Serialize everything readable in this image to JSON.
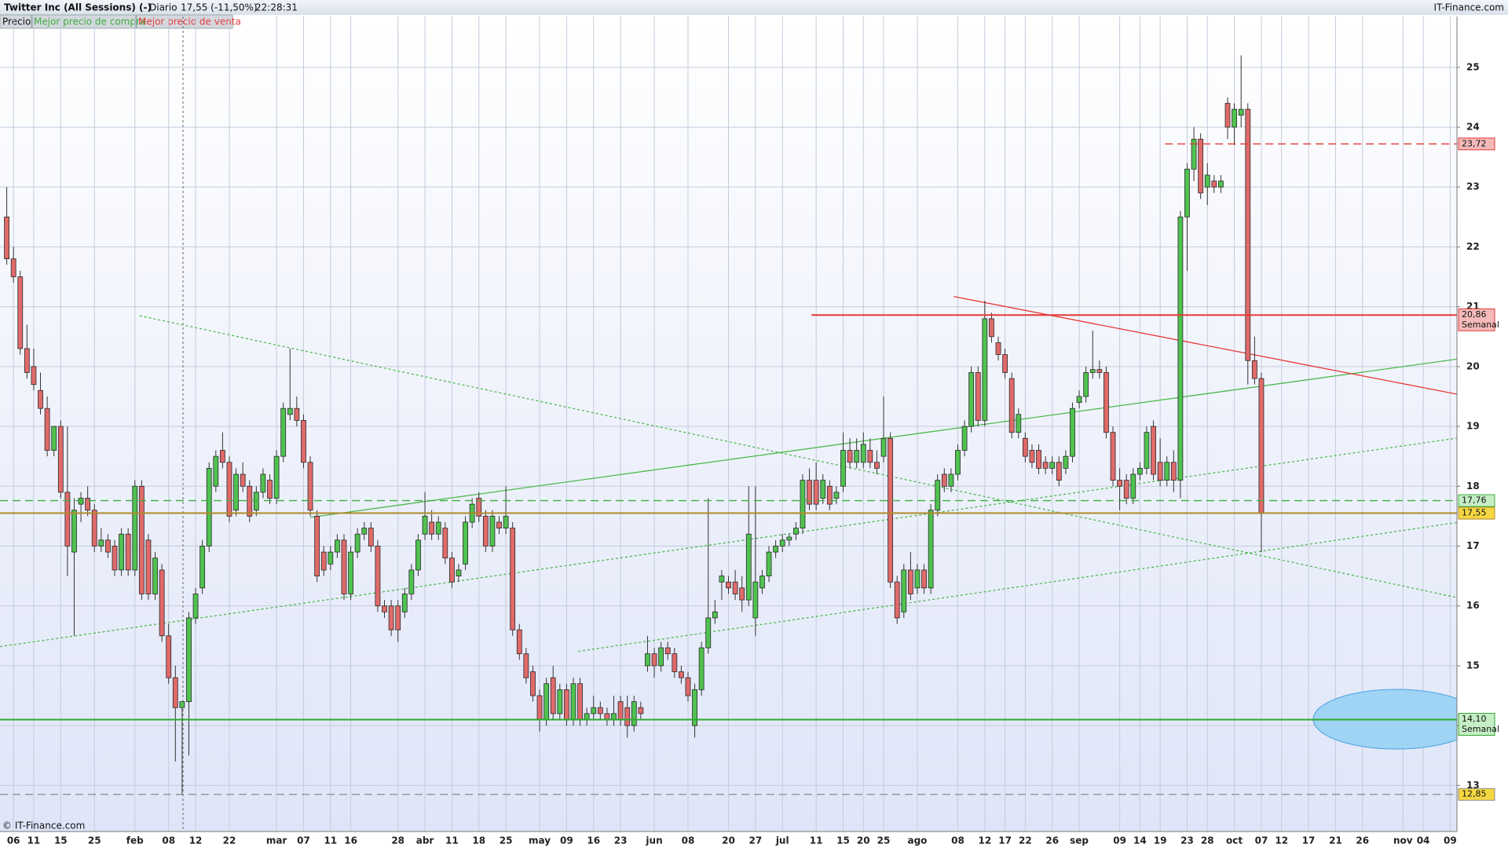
{
  "header": {
    "title": "Twitter Inc (All Sessions) (-)",
    "period": "Diario",
    "price": "17,55 (-11,50%)",
    "time": "22:28:31",
    "brand": "IT-Finance.com",
    "legend": [
      "Precio",
      "Mejor precio de compra",
      "Mejor precio de venta"
    ]
  },
  "footer": "© IT-Finance.com",
  "chart_data": {
    "type": "candlestick",
    "up_color": "#4fc24f",
    "down_color": "#e06a6a",
    "ylim": [
      12.23,
      25.85
    ],
    "yticks": [
      13,
      14,
      15,
      16,
      17,
      18,
      19,
      20,
      21,
      22,
      23,
      24,
      25
    ],
    "grid": true,
    "categories": [
      null,
      "06",
      null,
      null,
      "11",
      null,
      null,
      null,
      "15",
      null,
      null,
      null,
      null,
      "25",
      null,
      null,
      null,
      null,
      null,
      "feb",
      null,
      null,
      null,
      null,
      "08",
      null,
      null,
      null,
      "12",
      null,
      null,
      null,
      null,
      "22",
      null,
      null,
      null,
      null,
      null,
      null,
      "mar",
      null,
      null,
      null,
      "07",
      null,
      null,
      null,
      "11",
      null,
      null,
      "16",
      null,
      null,
      null,
      null,
      null,
      null,
      "28",
      null,
      null,
      null,
      "abr",
      null,
      null,
      null,
      "11",
      null,
      null,
      null,
      "18",
      null,
      null,
      null,
      "25",
      null,
      null,
      null,
      null,
      "may",
      null,
      null,
      null,
      "09",
      null,
      null,
      null,
      "16",
      null,
      null,
      null,
      "23",
      null,
      null,
      null,
      null,
      "jun",
      null,
      null,
      null,
      null,
      "08",
      null,
      null,
      null,
      null,
      null,
      "20",
      null,
      null,
      null,
      "27",
      null,
      null,
      null,
      "jul",
      null,
      null,
      null,
      null,
      "11",
      null,
      null,
      null,
      "15",
      null,
      null,
      "20",
      null,
      null,
      "25",
      null,
      null,
      null,
      null,
      "ago",
      null,
      null,
      null,
      null,
      null,
      "08",
      null,
      null,
      null,
      "12",
      null,
      null,
      "17",
      null,
      null,
      "22",
      null,
      null,
      null,
      "26",
      null,
      null,
      null,
      "sep",
      null,
      null,
      null,
      null,
      null,
      "09",
      null,
      null,
      "14",
      null,
      null,
      "19",
      null,
      null,
      null,
      "23",
      null,
      null,
      "28",
      null,
      null,
      null,
      "oct",
      null,
      null,
      null,
      "07",
      null,
      null,
      "12",
      null,
      null,
      null,
      "17",
      null,
      null,
      null,
      "21",
      null,
      null,
      null,
      "26",
      null,
      null,
      null,
      null,
      null,
      "nov",
      null,
      null,
      "04",
      null,
      null,
      null,
      "09",
      null
    ],
    "candles": [
      [
        22.5,
        23.0,
        21.7,
        21.8
      ],
      [
        21.8,
        22.0,
        21.4,
        21.5
      ],
      [
        21.5,
        21.6,
        20.2,
        20.3
      ],
      [
        20.3,
        20.7,
        19.8,
        19.9
      ],
      [
        20.0,
        20.3,
        19.6,
        19.7
      ],
      [
        19.6,
        19.9,
        19.2,
        19.3
      ],
      [
        19.3,
        19.5,
        18.5,
        18.6
      ],
      [
        18.6,
        19.0,
        18.5,
        19.0
      ],
      [
        19.0,
        19.1,
        17.8,
        17.9
      ],
      [
        17.9,
        19.0,
        16.5,
        17.0
      ],
      [
        16.9,
        17.8,
        15.5,
        17.6
      ],
      [
        17.7,
        17.9,
        17.4,
        17.8
      ],
      [
        17.8,
        18.0,
        17.5,
        17.6
      ],
      [
        17.6,
        17.7,
        16.9,
        17.0
      ],
      [
        17.0,
        17.3,
        16.9,
        17.1
      ],
      [
        17.1,
        17.2,
        16.8,
        16.9
      ],
      [
        17.0,
        17.1,
        16.5,
        16.6
      ],
      [
        16.6,
        17.3,
        16.5,
        17.2
      ],
      [
        17.2,
        17.3,
        16.5,
        16.6
      ],
      [
        16.6,
        18.1,
        16.5,
        18.0
      ],
      [
        18.0,
        18.1,
        16.1,
        16.2
      ],
      [
        17.1,
        17.2,
        16.1,
        16.2
      ],
      [
        16.2,
        16.9,
        16.1,
        16.8
      ],
      [
        16.6,
        16.7,
        15.4,
        15.5
      ],
      [
        15.5,
        15.7,
        14.7,
        14.8
      ],
      [
        14.8,
        15.0,
        13.4,
        14.3
      ],
      [
        14.3,
        14.4,
        12.85,
        14.4
      ],
      [
        14.4,
        15.9,
        13.5,
        15.8
      ],
      [
        15.8,
        16.3,
        15.7,
        16.2
      ],
      [
        16.3,
        17.1,
        16.2,
        17.0
      ],
      [
        17.0,
        18.4,
        16.9,
        18.3
      ],
      [
        18.0,
        18.6,
        17.9,
        18.5
      ],
      [
        18.6,
        18.9,
        18.3,
        18.4
      ],
      [
        18.4,
        18.5,
        17.4,
        17.5
      ],
      [
        17.6,
        18.3,
        17.5,
        18.2
      ],
      [
        18.2,
        18.4,
        17.9,
        18.0
      ],
      [
        18.0,
        18.1,
        17.4,
        17.5
      ],
      [
        17.6,
        18.0,
        17.5,
        17.9
      ],
      [
        17.9,
        18.3,
        17.8,
        18.2
      ],
      [
        18.1,
        18.2,
        17.7,
        17.8
      ],
      [
        17.8,
        18.6,
        17.7,
        18.5
      ],
      [
        18.5,
        19.4,
        18.4,
        19.3
      ],
      [
        19.2,
        20.3,
        19.1,
        19.3
      ],
      [
        19.3,
        19.5,
        19.0,
        19.1
      ],
      [
        19.1,
        19.2,
        18.3,
        18.4
      ],
      [
        18.4,
        18.5,
        17.5,
        17.6
      ],
      [
        17.5,
        17.6,
        16.4,
        16.5
      ],
      [
        16.9,
        17.0,
        16.5,
        16.6
      ],
      [
        16.7,
        17.0,
        16.6,
        16.9
      ],
      [
        16.9,
        17.2,
        16.8,
        17.1
      ],
      [
        17.1,
        17.2,
        16.1,
        16.2
      ],
      [
        16.2,
        17.0,
        16.1,
        16.9
      ],
      [
        16.9,
        17.3,
        16.8,
        17.2
      ],
      [
        17.2,
        17.4,
        17.1,
        17.3
      ],
      [
        17.3,
        17.4,
        16.9,
        17.0
      ],
      [
        17.0,
        17.1,
        15.9,
        16.0
      ],
      [
        16.0,
        16.1,
        15.8,
        15.9
      ],
      [
        16.0,
        16.1,
        15.5,
        15.6
      ],
      [
        16.0,
        16.1,
        15.4,
        15.6
      ],
      [
        15.9,
        16.3,
        15.8,
        16.2
      ],
      [
        16.2,
        16.7,
        16.1,
        16.6
      ],
      [
        16.6,
        17.2,
        16.5,
        17.1
      ],
      [
        17.2,
        17.9,
        17.1,
        17.5
      ],
      [
        17.4,
        17.6,
        17.1,
        17.2
      ],
      [
        17.2,
        17.5,
        17.1,
        17.4
      ],
      [
        17.3,
        17.4,
        16.7,
        16.8
      ],
      [
        16.8,
        16.9,
        16.3,
        16.4
      ],
      [
        16.5,
        16.7,
        16.4,
        16.6
      ],
      [
        16.7,
        17.5,
        16.6,
        17.4
      ],
      [
        17.4,
        17.8,
        17.3,
        17.7
      ],
      [
        17.8,
        17.9,
        17.4,
        17.5
      ],
      [
        17.5,
        17.6,
        16.9,
        17.0
      ],
      [
        17.0,
        17.6,
        16.9,
        17.5
      ],
      [
        17.4,
        17.5,
        17.2,
        17.3
      ],
      [
        17.3,
        18.0,
        17.2,
        17.5
      ],
      [
        17.3,
        17.4,
        15.5,
        15.6
      ],
      [
        15.6,
        15.7,
        15.1,
        15.2
      ],
      [
        15.2,
        15.3,
        14.7,
        14.8
      ],
      [
        14.9,
        15.0,
        14.4,
        14.5
      ],
      [
        14.5,
        14.6,
        13.9,
        14.1
      ],
      [
        14.1,
        14.8,
        14.0,
        14.7
      ],
      [
        14.8,
        15.0,
        14.1,
        14.2
      ],
      [
        14.2,
        14.7,
        14.1,
        14.6
      ],
      [
        14.6,
        14.7,
        14.0,
        14.1
      ],
      [
        14.1,
        14.8,
        14.0,
        14.7
      ],
      [
        14.7,
        14.8,
        14.0,
        14.1
      ],
      [
        14.1,
        14.3,
        14.0,
        14.2
      ],
      [
        14.2,
        14.5,
        14.1,
        14.3
      ],
      [
        14.3,
        14.4,
        14.1,
        14.2
      ],
      [
        14.2,
        14.3,
        14.0,
        14.1
      ],
      [
        14.1,
        14.5,
        14.0,
        14.2
      ],
      [
        14.4,
        14.5,
        14.0,
        14.1
      ],
      [
        14.3,
        14.5,
        13.8,
        14.0
      ],
      [
        14.0,
        14.5,
        13.9,
        14.4
      ],
      [
        14.3,
        14.4,
        14.1,
        14.2
      ],
      [
        15.0,
        15.5,
        14.9,
        15.2
      ],
      [
        15.2,
        15.3,
        14.8,
        15.0
      ],
      [
        15.0,
        15.4,
        14.9,
        15.3
      ],
      [
        15.3,
        15.4,
        15.1,
        15.2
      ],
      [
        15.2,
        15.3,
        14.8,
        14.9
      ],
      [
        14.9,
        15.0,
        14.7,
        14.8
      ],
      [
        14.8,
        14.9,
        14.4,
        14.5
      ],
      [
        14.0,
        14.7,
        13.8,
        14.6
      ],
      [
        14.6,
        15.4,
        14.5,
        15.3
      ],
      [
        15.3,
        17.8,
        15.2,
        15.8
      ],
      [
        15.8,
        16.1,
        15.7,
        15.9
      ],
      [
        16.4,
        16.6,
        16.1,
        16.5
      ],
      [
        16.4,
        16.5,
        16.2,
        16.3
      ],
      [
        16.4,
        16.6,
        16.1,
        16.2
      ],
      [
        16.3,
        16.5,
        15.9,
        16.1
      ],
      [
        16.1,
        18.0,
        16.0,
        17.2
      ],
      [
        15.8,
        18.0,
        15.5,
        16.4
      ],
      [
        16.3,
        16.6,
        16.2,
        16.5
      ],
      [
        16.5,
        17.0,
        16.4,
        16.9
      ],
      [
        16.9,
        17.1,
        16.8,
        17.0
      ],
      [
        17.0,
        17.2,
        16.9,
        17.1
      ],
      [
        17.1,
        17.2,
        17.0,
        17.15
      ],
      [
        17.2,
        17.4,
        17.1,
        17.3
      ],
      [
        17.3,
        18.2,
        17.2,
        18.1
      ],
      [
        18.1,
        18.3,
        17.6,
        17.7
      ],
      [
        18.1,
        18.4,
        17.6,
        17.7
      ],
      [
        17.8,
        18.2,
        17.7,
        18.1
      ],
      [
        18.0,
        18.1,
        17.6,
        17.7
      ],
      [
        17.8,
        18.0,
        17.7,
        17.9
      ],
      [
        18.0,
        18.9,
        17.9,
        18.6
      ],
      [
        18.6,
        18.8,
        18.3,
        18.4
      ],
      [
        18.4,
        18.8,
        18.3,
        18.6
      ],
      [
        18.4,
        18.9,
        18.3,
        18.7
      ],
      [
        18.6,
        18.8,
        18.3,
        18.4
      ],
      [
        18.4,
        18.6,
        18.2,
        18.3
      ],
      [
        18.5,
        19.5,
        18.4,
        18.8
      ],
      [
        18.8,
        18.9,
        16.3,
        16.4
      ],
      [
        16.4,
        16.5,
        15.7,
        15.8
      ],
      [
        15.9,
        16.7,
        15.8,
        16.6
      ],
      [
        16.6,
        16.9,
        16.1,
        16.2
      ],
      [
        16.3,
        16.7,
        16.2,
        16.6
      ],
      [
        16.6,
        16.7,
        16.2,
        16.3
      ],
      [
        16.3,
        17.7,
        16.2,
        17.6
      ],
      [
        17.6,
        18.2,
        17.5,
        18.1
      ],
      [
        18.2,
        18.3,
        17.9,
        18.0
      ],
      [
        18.0,
        18.3,
        17.9,
        18.2
      ],
      [
        18.2,
        18.7,
        18.1,
        18.6
      ],
      [
        18.6,
        19.1,
        18.5,
        19.0
      ],
      [
        19.0,
        20.0,
        18.9,
        19.9
      ],
      [
        19.9,
        20.0,
        19.0,
        19.1
      ],
      [
        19.1,
        21.1,
        19.0,
        20.8
      ],
      [
        20.8,
        20.9,
        20.4,
        20.5
      ],
      [
        20.4,
        20.5,
        20.1,
        20.2
      ],
      [
        20.2,
        20.3,
        19.8,
        19.9
      ],
      [
        19.8,
        19.9,
        18.8,
        18.9
      ],
      [
        18.9,
        19.3,
        18.8,
        19.2
      ],
      [
        18.8,
        18.9,
        18.4,
        18.5
      ],
      [
        18.6,
        18.7,
        18.3,
        18.4
      ],
      [
        18.6,
        18.7,
        18.2,
        18.3
      ],
      [
        18.4,
        18.5,
        18.2,
        18.3
      ],
      [
        18.3,
        18.5,
        18.2,
        18.4
      ],
      [
        18.4,
        18.5,
        18.0,
        18.1
      ],
      [
        18.3,
        18.6,
        18.2,
        18.5
      ],
      [
        18.5,
        19.4,
        18.4,
        19.3
      ],
      [
        19.4,
        19.6,
        19.3,
        19.5
      ],
      [
        19.5,
        20.0,
        19.4,
        19.9
      ],
      [
        19.9,
        20.6,
        19.8,
        19.95
      ],
      [
        19.95,
        20.1,
        19.8,
        19.9
      ],
      [
        19.9,
        20.0,
        18.8,
        18.9
      ],
      [
        18.9,
        19.0,
        18.0,
        18.1
      ],
      [
        18.1,
        18.3,
        17.6,
        18.0
      ],
      [
        18.1,
        18.2,
        17.7,
        17.8
      ],
      [
        17.8,
        18.3,
        17.7,
        18.2
      ],
      [
        18.2,
        18.4,
        18.1,
        18.3
      ],
      [
        18.3,
        19.0,
        18.2,
        18.9
      ],
      [
        19.0,
        19.1,
        18.1,
        18.2
      ],
      [
        18.4,
        18.8,
        18.0,
        18.1
      ],
      [
        18.1,
        18.5,
        18.0,
        18.4
      ],
      [
        18.4,
        18.6,
        17.9,
        18.1
      ],
      [
        18.1,
        22.6,
        17.8,
        22.5
      ],
      [
        22.5,
        23.4,
        21.6,
        23.3
      ],
      [
        23.3,
        24.0,
        23.1,
        23.8
      ],
      [
        23.8,
        23.9,
        22.8,
        22.9
      ],
      [
        23.0,
        23.4,
        22.7,
        23.2
      ],
      [
        23.1,
        23.2,
        22.9,
        23.0
      ],
      [
        23.0,
        23.2,
        22.9,
        23.1
      ],
      [
        24.4,
        24.5,
        23.8,
        24.0
      ],
      [
        24.0,
        24.4,
        23.7,
        24.3
      ],
      [
        24.2,
        25.2,
        24.0,
        24.3
      ],
      [
        24.3,
        24.4,
        19.7,
        20.1
      ],
      [
        20.1,
        20.5,
        19.7,
        19.8
      ],
      [
        19.8,
        19.9,
        16.9,
        17.55
      ],
      null,
      null,
      null,
      null,
      null,
      null,
      null,
      null,
      null,
      null,
      null,
      null,
      null,
      null,
      null,
      null,
      null,
      null,
      null,
      null,
      null,
      null,
      null,
      null,
      null,
      null,
      null,
      null,
      null
    ],
    "levels": [
      {
        "value": 23.72,
        "label": "23,72",
        "color": "#e53935",
        "tag": "#f4b9b9",
        "style": "dashed",
        "from": 171.7
      },
      {
        "value": 20.86,
        "label": "20,86",
        "note": "Semanal",
        "color": "#e53935",
        "tag": "#f4b9b9",
        "style": "solid",
        "from": 119.3
      },
      {
        "value": 17.76,
        "label": "17,76",
        "color": "#3fae3f",
        "tag": "#c6eec6",
        "style": "dashed"
      },
      {
        "value": 17.55,
        "label": "17,55",
        "color": "#b08a2a",
        "tag": "#f5d742",
        "style": "solid"
      },
      {
        "value": 14.1,
        "label": "14,10",
        "note": "Semanal",
        "color": "#2eaa2e",
        "tag": "#c6eec6",
        "style": "solid"
      },
      {
        "value": 12.85,
        "label": "12,85",
        "color": "#8a8a8a",
        "tag": "#f5d742",
        "style": "dashed"
      }
    ],
    "trendlines": [
      {
        "x": [
          19.7,
          215.4
        ],
        "y": [
          20.85,
          16.13
        ],
        "color": "#4cb84c",
        "style": "dotted"
      },
      {
        "x": [
          -1,
          215.4
        ],
        "y": [
          15.32,
          18.81
        ],
        "color": "#4cb84c",
        "style": "dotted"
      },
      {
        "x": [
          45,
          215.4
        ],
        "y": [
          17.48,
          20.13
        ],
        "color": "#4cb84c",
        "style": "solid"
      },
      {
        "x": [
          84.7,
          215.4
        ],
        "y": [
          15.24,
          17.4
        ],
        "color": "#4cb84c",
        "style": "dotted"
      },
      {
        "x": [
          140.4,
          215.4
        ],
        "y": [
          21.17,
          19.53
        ],
        "color": "#e53935",
        "style": "solid"
      }
    ]
  }
}
